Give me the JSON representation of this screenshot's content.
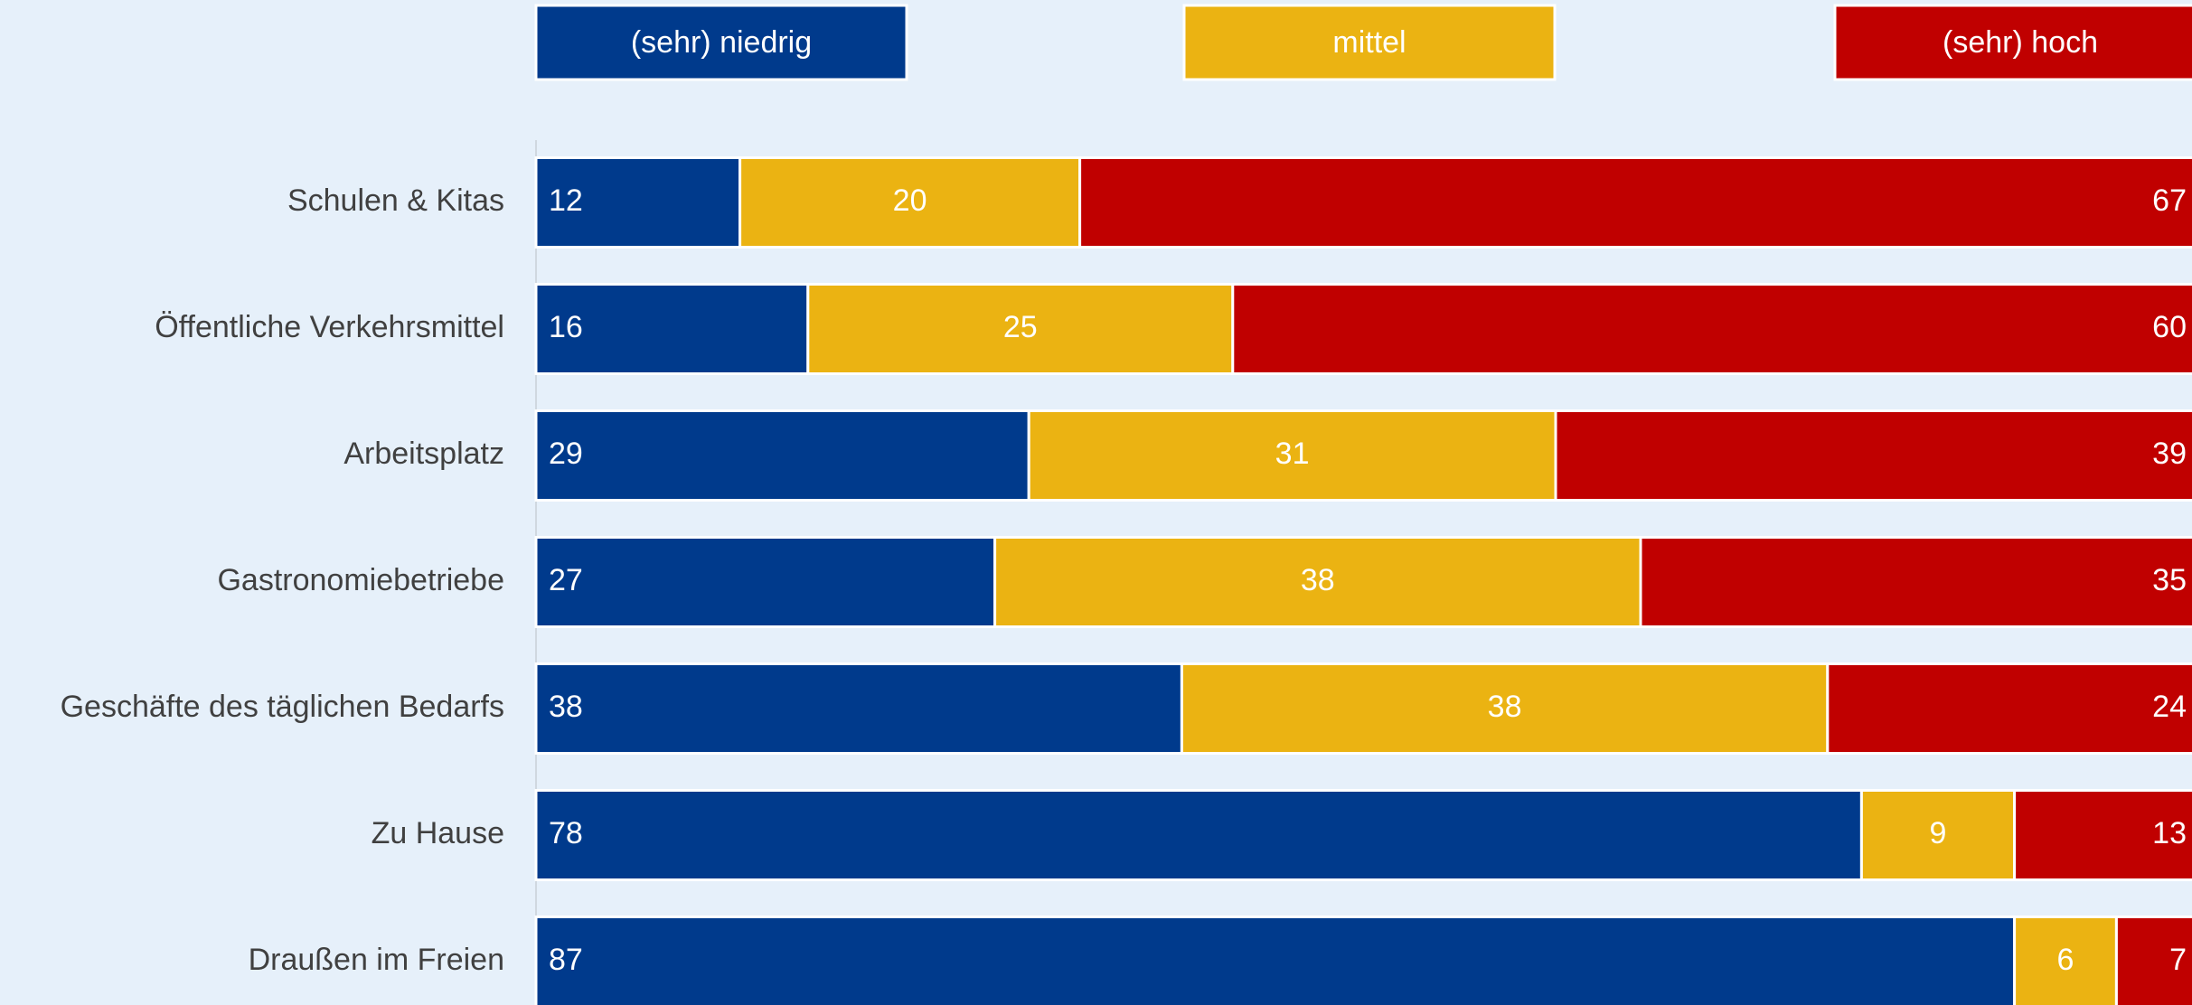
{
  "chart_data": {
    "type": "stacked-bar-horizontal",
    "categories": [
      "Schulen & Kitas",
      "Öffentliche Verkehrsmittel",
      "Arbeitsplatz",
      "Gastronomiebetriebe",
      "Geschäfte des täglichen Bedarfs",
      "Zu Hause",
      "Draußen im Freien"
    ],
    "series": [
      {
        "name": "(sehr) niedrig",
        "color": "#003a8c",
        "values": [
          12,
          16,
          29,
          27,
          38,
          78,
          87
        ]
      },
      {
        "name": "mittel",
        "color": "#ebb312",
        "values": [
          20,
          25,
          31,
          38,
          38,
          9,
          6
        ]
      },
      {
        "name": "(sehr) hoch",
        "color": "#c00000",
        "values": [
          67,
          60,
          39,
          35,
          24,
          13,
          7
        ]
      }
    ],
    "xlim": [
      0,
      100
    ]
  }
}
